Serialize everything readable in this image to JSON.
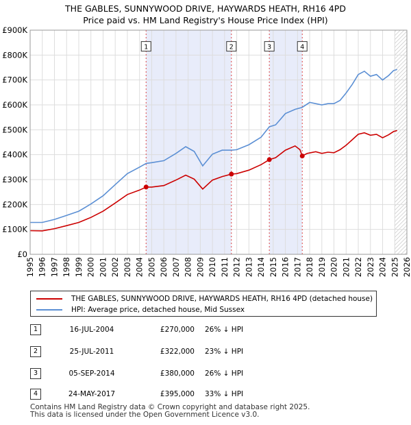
{
  "chart_data": {
    "type": "line",
    "title": "THE GABLES, SUNNYWOOD DRIVE, HAYWARDS HEATH, RH16 4PD",
    "subtitle": "Price paid vs. HM Land Registry's House Price Index (HPI)",
    "xlim": [
      1995,
      2026
    ],
    "ylim": [
      0,
      900000
    ],
    "x_ticks": [
      "1995",
      "1996",
      "1997",
      "1998",
      "1999",
      "2000",
      "2001",
      "2002",
      "2003",
      "2004",
      "2005",
      "2006",
      "2007",
      "2008",
      "2009",
      "2010",
      "2011",
      "2012",
      "2013",
      "2014",
      "2015",
      "2016",
      "2017",
      "2018",
      "2019",
      "2020",
      "2021",
      "2022",
      "2023",
      "2024",
      "2025",
      "2026"
    ],
    "y_ticks": [
      {
        "value": 0,
        "label": "£0"
      },
      {
        "value": 100000,
        "label": "£100K"
      },
      {
        "value": 200000,
        "label": "£200K"
      },
      {
        "value": 300000,
        "label": "£300K"
      },
      {
        "value": 400000,
        "label": "£400K"
      },
      {
        "value": 500000,
        "label": "£500K"
      },
      {
        "value": 600000,
        "label": "£600K"
      },
      {
        "value": 700000,
        "label": "£700K"
      },
      {
        "value": 800000,
        "label": "£800K"
      },
      {
        "value": 900000,
        "label": "£900K"
      }
    ],
    "shaded_periods": [
      [
        2004.54,
        2011.56
      ],
      [
        2014.68,
        2017.39
      ]
    ],
    "forecast_start": 2025.0,
    "series": [
      {
        "name": "THE GABLES, SUNNYWOOD DRIVE, HAYWARDS HEATH, RH16 4PD (detached house)",
        "color": "#cc0000",
        "points": [
          [
            1995.0,
            95000
          ],
          [
            1996.0,
            94000
          ],
          [
            1997.0,
            103000
          ],
          [
            1998.0,
            115000
          ],
          [
            1999.0,
            128000
          ],
          [
            2000.0,
            148000
          ],
          [
            2001.0,
            173000
          ],
          [
            2002.0,
            206000
          ],
          [
            2003.0,
            240000
          ],
          [
            2004.0,
            258000
          ],
          [
            2004.54,
            270000
          ],
          [
            2005.0,
            270000
          ],
          [
            2006.0,
            276000
          ],
          [
            2007.0,
            298000
          ],
          [
            2007.8,
            318000
          ],
          [
            2008.5,
            302000
          ],
          [
            2009.2,
            262000
          ],
          [
            2010.0,
            298000
          ],
          [
            2010.8,
            312000
          ],
          [
            2011.56,
            322000
          ],
          [
            2012.0,
            324000
          ],
          [
            2013.0,
            338000
          ],
          [
            2014.0,
            360000
          ],
          [
            2014.68,
            380000
          ],
          [
            2015.2,
            388000
          ],
          [
            2016.0,
            418000
          ],
          [
            2016.8,
            435000
          ],
          [
            2017.2,
            420000
          ],
          [
            2017.39,
            395000
          ],
          [
            2017.8,
            405000
          ],
          [
            2018.5,
            412000
          ],
          [
            2019.0,
            405000
          ],
          [
            2019.5,
            410000
          ],
          [
            2020.0,
            408000
          ],
          [
            2020.5,
            420000
          ],
          [
            2021.0,
            438000
          ],
          [
            2021.5,
            460000
          ],
          [
            2022.0,
            482000
          ],
          [
            2022.5,
            488000
          ],
          [
            2023.0,
            478000
          ],
          [
            2023.5,
            482000
          ],
          [
            2024.0,
            468000
          ],
          [
            2024.5,
            480000
          ],
          [
            2024.9,
            493000
          ],
          [
            2025.2,
            497000
          ]
        ]
      },
      {
        "name": "HPI: Average price, detached house, Mid Sussex",
        "color": "#5b8fd4",
        "points": [
          [
            1995.0,
            128000
          ],
          [
            1996.0,
            128000
          ],
          [
            1997.0,
            140000
          ],
          [
            1998.0,
            156000
          ],
          [
            1999.0,
            173000
          ],
          [
            2000.0,
            202000
          ],
          [
            2001.0,
            235000
          ],
          [
            2002.0,
            280000
          ],
          [
            2003.0,
            324000
          ],
          [
            2004.0,
            350000
          ],
          [
            2004.54,
            365000
          ],
          [
            2005.0,
            368000
          ],
          [
            2006.0,
            376000
          ],
          [
            2007.0,
            405000
          ],
          [
            2007.8,
            432000
          ],
          [
            2008.5,
            413000
          ],
          [
            2009.2,
            355000
          ],
          [
            2010.0,
            402000
          ],
          [
            2010.8,
            418000
          ],
          [
            2011.56,
            418000
          ],
          [
            2012.0,
            420000
          ],
          [
            2013.0,
            440000
          ],
          [
            2014.0,
            470000
          ],
          [
            2014.68,
            512000
          ],
          [
            2015.2,
            520000
          ],
          [
            2016.0,
            565000
          ],
          [
            2016.8,
            582000
          ],
          [
            2017.39,
            590000
          ],
          [
            2018.0,
            610000
          ],
          [
            2019.0,
            600000
          ],
          [
            2019.5,
            605000
          ],
          [
            2020.0,
            605000
          ],
          [
            2020.5,
            618000
          ],
          [
            2021.0,
            648000
          ],
          [
            2021.5,
            682000
          ],
          [
            2022.0,
            722000
          ],
          [
            2022.5,
            735000
          ],
          [
            2023.0,
            715000
          ],
          [
            2023.5,
            722000
          ],
          [
            2024.0,
            700000
          ],
          [
            2024.5,
            718000
          ],
          [
            2024.9,
            738000
          ],
          [
            2025.2,
            742000
          ]
        ]
      }
    ],
    "transactions": [
      {
        "n": "1",
        "x": 2004.54,
        "price": 270000
      },
      {
        "n": "2",
        "x": 2011.56,
        "price": 322000
      },
      {
        "n": "3",
        "x": 2014.68,
        "price": 380000
      },
      {
        "n": "4",
        "x": 2017.39,
        "price": 395000
      }
    ]
  },
  "legend": {
    "property": "THE GABLES, SUNNYWOOD DRIVE, HAYWARDS HEATH, RH16 4PD (detached house)",
    "hpi": "HPI: Average price, detached house, Mid Sussex"
  },
  "table": [
    {
      "n": "1",
      "date": "16-JUL-2004",
      "price": "£270,000",
      "hpi": "26% ↓ HPI"
    },
    {
      "n": "2",
      "date": "25-JUL-2011",
      "price": "£322,000",
      "hpi": "23% ↓ HPI"
    },
    {
      "n": "3",
      "date": "05-SEP-2014",
      "price": "£380,000",
      "hpi": "26% ↓ HPI"
    },
    {
      "n": "4",
      "date": "24-MAY-2017",
      "price": "£395,000",
      "hpi": "33% ↓ HPI"
    }
  ],
  "footer": {
    "line1": "Contains HM Land Registry data © Crown copyright and database right 2025.",
    "line2": "This data is licensed under the Open Government Licence v3.0."
  }
}
